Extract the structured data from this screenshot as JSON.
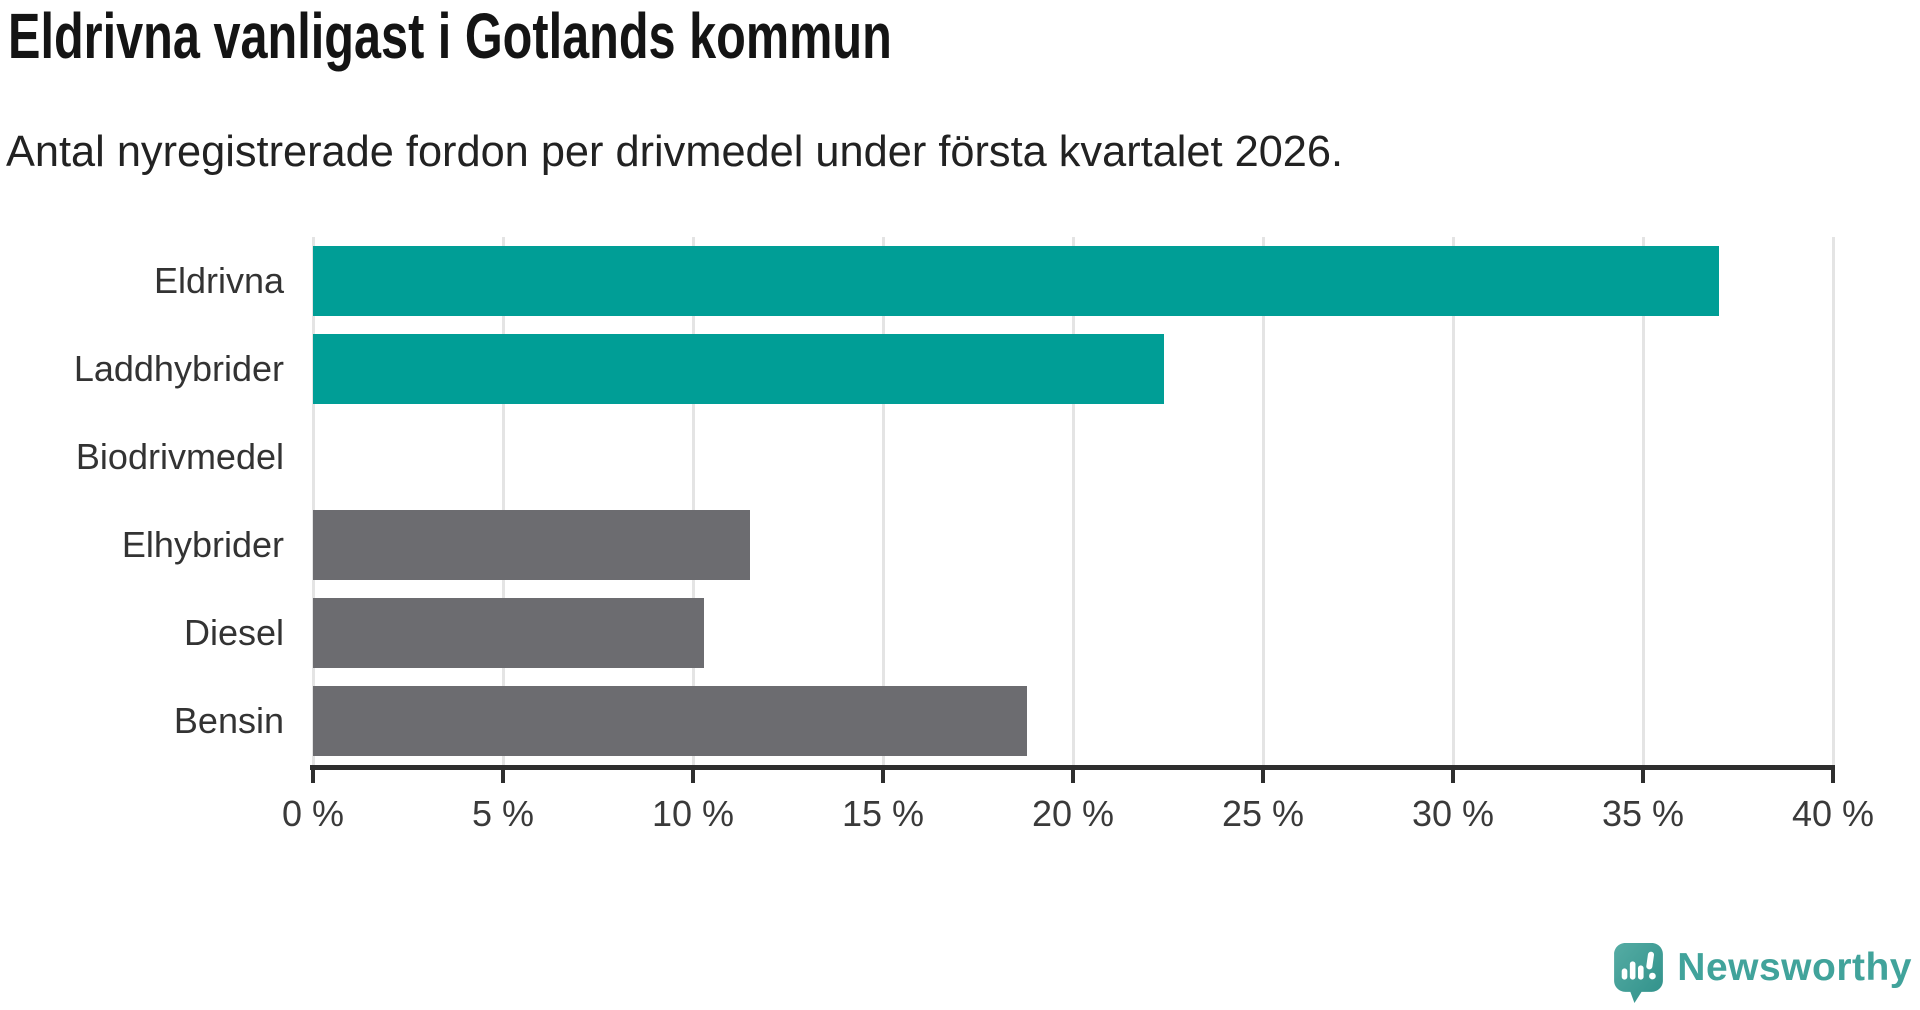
{
  "title": "Eldrivna vanligast i Gotlands kommun",
  "subtitle": "Antal nyregistrerade fordon per drivmedel under första kvartalet 2026.",
  "chart_data": {
    "type": "bar",
    "orientation": "horizontal",
    "categories": [
      "Eldrivna",
      "Laddhybrider",
      "Biodrivmedel",
      "Elhybrider",
      "Diesel",
      "Bensin"
    ],
    "values": [
      37.0,
      22.4,
      0,
      11.5,
      10.3,
      18.8
    ],
    "unit": "%",
    "xlim": [
      0,
      40
    ],
    "x_ticks": [
      "0 %",
      "5 %",
      "10 %",
      "15 %",
      "20 %",
      "25 %",
      "30 %",
      "35 %",
      "40 %"
    ],
    "grid": true,
    "legend": "none",
    "bar_colors": [
      "#009e96",
      "#009e96",
      "#6c6c70",
      "#6c6c70",
      "#6c6c70",
      "#6c6c70"
    ],
    "highlight_color": "#009e96",
    "default_color": "#6c6c70",
    "gridline_color": "#e4e4e4",
    "axis_color": "#2e2e2e"
  },
  "branding": {
    "logo_text": "Newsworthy",
    "logo_color": "#41a39b",
    "logo_icon": "newsworthy-speech-bubble-chart-icon"
  }
}
